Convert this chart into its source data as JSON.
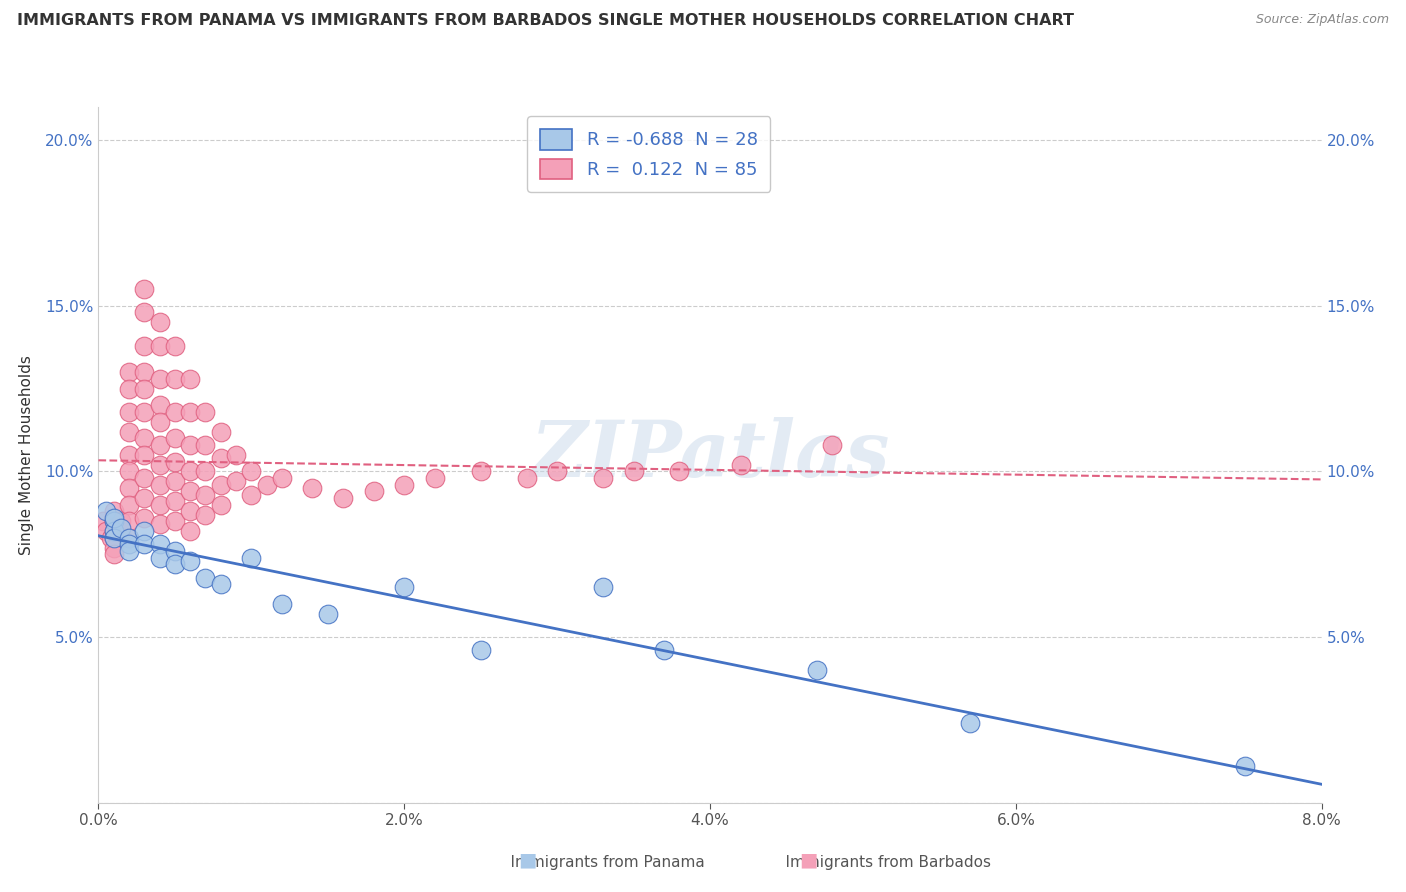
{
  "title": "IMMIGRANTS FROM PANAMA VS IMMIGRANTS FROM BARBADOS SINGLE MOTHER HOUSEHOLDS CORRELATION CHART",
  "source": "Source: ZipAtlas.com",
  "ylabel": "Single Mother Households",
  "xlabel": "",
  "xlim": [
    0.0,
    0.08
  ],
  "ylim": [
    0.0,
    0.21
  ],
  "x_ticks": [
    0.0,
    0.02,
    0.04,
    0.06,
    0.08
  ],
  "x_tick_labels": [
    "0.0%",
    "2.0%",
    "4.0%",
    "6.0%",
    "8.0%"
  ],
  "y_ticks": [
    0.0,
    0.05,
    0.1,
    0.15,
    0.2
  ],
  "y_tick_labels": [
    "",
    "5.0%",
    "10.0%",
    "15.0%",
    "20.0%"
  ],
  "panama_color": "#a8c8e8",
  "barbados_color": "#f4a0b8",
  "panama_line_color": "#4472c4",
  "barbados_line_color": "#e06080",
  "panama_R": -0.688,
  "panama_N": 28,
  "barbados_R": 0.122,
  "barbados_N": 85,
  "watermark_text": "ZIPatlas",
  "panama_scatter_x": [
    0.0005,
    0.001,
    0.001,
    0.001,
    0.001,
    0.0015,
    0.002,
    0.002,
    0.002,
    0.003,
    0.003,
    0.004,
    0.004,
    0.005,
    0.005,
    0.006,
    0.007,
    0.008,
    0.01,
    0.012,
    0.015,
    0.02,
    0.025,
    0.033,
    0.037,
    0.047,
    0.057,
    0.075
  ],
  "panama_scatter_y": [
    0.088,
    0.085,
    0.082,
    0.08,
    0.086,
    0.083,
    0.08,
    0.078,
    0.076,
    0.082,
    0.078,
    0.078,
    0.074,
    0.076,
    0.072,
    0.073,
    0.068,
    0.066,
    0.074,
    0.06,
    0.057,
    0.065,
    0.046,
    0.065,
    0.046,
    0.04,
    0.024,
    0.011
  ],
  "barbados_scatter_x": [
    0.0003,
    0.0005,
    0.0008,
    0.001,
    0.001,
    0.001,
    0.001,
    0.001,
    0.001,
    0.0015,
    0.0015,
    0.002,
    0.002,
    0.002,
    0.002,
    0.002,
    0.002,
    0.002,
    0.002,
    0.002,
    0.002,
    0.003,
    0.003,
    0.003,
    0.003,
    0.003,
    0.003,
    0.003,
    0.003,
    0.003,
    0.003,
    0.003,
    0.004,
    0.004,
    0.004,
    0.004,
    0.004,
    0.004,
    0.004,
    0.004,
    0.004,
    0.004,
    0.005,
    0.005,
    0.005,
    0.005,
    0.005,
    0.005,
    0.005,
    0.005,
    0.006,
    0.006,
    0.006,
    0.006,
    0.006,
    0.006,
    0.006,
    0.007,
    0.007,
    0.007,
    0.007,
    0.007,
    0.008,
    0.008,
    0.008,
    0.008,
    0.009,
    0.009,
    0.01,
    0.01,
    0.011,
    0.012,
    0.014,
    0.016,
    0.018,
    0.02,
    0.022,
    0.025,
    0.028,
    0.03,
    0.033,
    0.035,
    0.038,
    0.042,
    0.048
  ],
  "barbados_scatter_y": [
    0.085,
    0.082,
    0.08,
    0.088,
    0.085,
    0.082,
    0.08,
    0.077,
    0.075,
    0.085,
    0.082,
    0.13,
    0.125,
    0.118,
    0.112,
    0.105,
    0.1,
    0.095,
    0.09,
    0.085,
    0.08,
    0.155,
    0.148,
    0.138,
    0.13,
    0.125,
    0.118,
    0.11,
    0.105,
    0.098,
    0.092,
    0.086,
    0.145,
    0.138,
    0.128,
    0.12,
    0.115,
    0.108,
    0.102,
    0.096,
    0.09,
    0.084,
    0.138,
    0.128,
    0.118,
    0.11,
    0.103,
    0.097,
    0.091,
    0.085,
    0.128,
    0.118,
    0.108,
    0.1,
    0.094,
    0.088,
    0.082,
    0.118,
    0.108,
    0.1,
    0.093,
    0.087,
    0.112,
    0.104,
    0.096,
    0.09,
    0.105,
    0.097,
    0.1,
    0.093,
    0.096,
    0.098,
    0.095,
    0.092,
    0.094,
    0.096,
    0.098,
    0.1,
    0.098,
    0.1,
    0.098,
    0.1,
    0.1,
    0.102,
    0.108
  ]
}
